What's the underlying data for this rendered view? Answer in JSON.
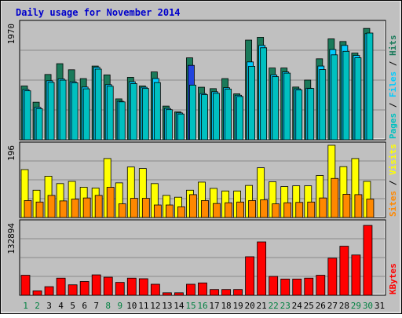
{
  "title": "Daily usage for November 2014",
  "colors": {
    "background": "#c0c0c0",
    "title": "#0000cc",
    "pages": "#00c0c0",
    "hits": "#1a7a5a",
    "files": "#00ccff",
    "files_special": "#2244dd",
    "visits": "#ffff00",
    "sites": "#ff8800",
    "kbytes": "#ff0000",
    "weekend_label": "#008040",
    "weekday_label": "#000000"
  },
  "chart_data": [
    {
      "type": "bar",
      "panel": "hits-files-pages",
      "ymax_label": "1970",
      "ylim": [
        0,
        1970
      ],
      "legend": [
        "Pages",
        "Files",
        "Hits"
      ],
      "categories": [
        "1",
        "2",
        "3",
        "4",
        "5",
        "6",
        "7",
        "8",
        "9",
        "10",
        "11",
        "12",
        "13",
        "14",
        "15",
        "16",
        "17",
        "18",
        "19",
        "20",
        "21",
        "22",
        "23",
        "24",
        "25",
        "26",
        "27",
        "28",
        "29",
        "30",
        "31"
      ],
      "series": [
        {
          "name": "Hits",
          "values": [
            912,
            637,
            1107,
            1290,
            1187,
            1037,
            1250,
            1100,
            693,
            1059,
            912,
            1150,
            571,
            473,
            1389,
            891,
            867,
            1037,
            779,
            1690,
            1738,
            1217,
            1217,
            894,
            1012,
            1373,
            1711,
            1666,
            1470,
            1888,
            null
          ]
        },
        {
          "name": "Files",
          "values": [
            851,
            550,
            1000,
            1033,
            984,
            894,
            1229,
            934,
            653,
            984,
            891,
            1038,
            531,
            455,
            1262,
            783,
            814,
            882,
            755,
            1320,
            1600,
            1100,
            1150,
            864,
            874,
            1250,
            1530,
            1600,
            1430,
            1800,
            null
          ]
        },
        {
          "name": "Pages",
          "values": [
            830,
            527,
            973,
            1011,
            966,
            864,
            1198,
            907,
            642,
            953,
            870,
            970,
            510,
            437,
            927,
            764,
            788,
            860,
            734,
            1246,
            1560,
            1070,
            1130,
            844,
            870,
            1190,
            1440,
            1500,
            1390,
            1810,
            null
          ]
        }
      ]
    },
    {
      "type": "bar",
      "panel": "visits-sites",
      "ymax_label": "196",
      "ylim": [
        0,
        196
      ],
      "legend": [
        "Sites",
        "Visits"
      ],
      "categories": [
        "1",
        "2",
        "3",
        "4",
        "5",
        "6",
        "7",
        "8",
        "9",
        "10",
        "11",
        "12",
        "13",
        "14",
        "15",
        "16",
        "17",
        "18",
        "19",
        "20",
        "21",
        "22",
        "23",
        "24",
        "25",
        "26",
        "27",
        "28",
        "29",
        "30",
        "31"
      ],
      "series": [
        {
          "name": "Visits",
          "values": [
            130,
            74,
            112,
            92,
            98,
            82,
            80,
            160,
            94,
            137,
            133,
            92,
            60,
            55,
            74,
            96,
            79,
            72,
            72,
            87,
            135,
            97,
            84,
            86,
            86,
            114,
            196,
            138,
            160,
            98,
            null
          ]
        },
        {
          "name": "Sites",
          "values": [
            46,
            42,
            60,
            45,
            50,
            53,
            60,
            82,
            37,
            52,
            52,
            34,
            34,
            29,
            62,
            46,
            38,
            40,
            42,
            46,
            48,
            37,
            40,
            41,
            42,
            53,
            106,
            63,
            62,
            50,
            null
          ]
        }
      ]
    },
    {
      "type": "bar",
      "panel": "kbytes",
      "ymax_label": "132894",
      "ylim": [
        0,
        132894
      ],
      "legend": [
        "KBytes"
      ],
      "categories": [
        "1",
        "2",
        "3",
        "4",
        "5",
        "6",
        "7",
        "8",
        "9",
        "10",
        "11",
        "12",
        "13",
        "14",
        "15",
        "16",
        "17",
        "18",
        "19",
        "20",
        "21",
        "22",
        "23",
        "24",
        "25",
        "26",
        "27",
        "28",
        "29",
        "30",
        "31"
      ],
      "series": [
        {
          "name": "KBytes",
          "values": [
            36760,
            8020,
            15780,
            31450,
            19180,
            25290,
            37480,
            33160,
            23640,
            31450,
            30390,
            20250,
            4530,
            4530,
            20250,
            22650,
            10560,
            10560,
            10560,
            70830,
            98160,
            34680,
            29800,
            29800,
            31450,
            36760,
            68180,
            90220,
            74040,
            128440,
            null
          ]
        }
      ]
    }
  ]
}
